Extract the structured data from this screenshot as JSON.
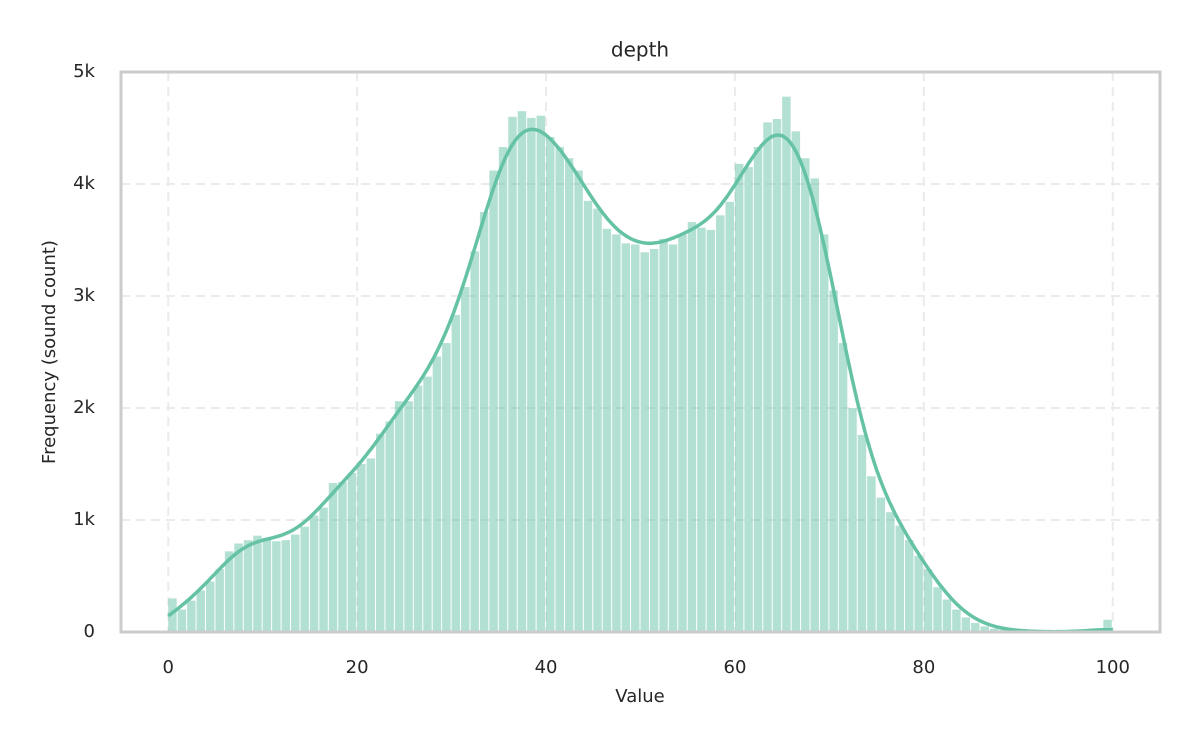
{
  "chart_data": {
    "type": "histogram",
    "title": "depth",
    "x_label": "Value",
    "y_label": "Frequency (sound count)",
    "bins": [
      0,
      1,
      2,
      3,
      4,
      5,
      6,
      7,
      8,
      9,
      10,
      11,
      12,
      13,
      14,
      15,
      16,
      17,
      18,
      19,
      20,
      21,
      22,
      23,
      24,
      25,
      26,
      27,
      28,
      29,
      30,
      31,
      32,
      33,
      34,
      35,
      36,
      37,
      38,
      39,
      40,
      41,
      42,
      43,
      44,
      45,
      46,
      47,
      48,
      49,
      50,
      51,
      52,
      53,
      54,
      55,
      56,
      57,
      58,
      59,
      60,
      61,
      62,
      63,
      64,
      65,
      66,
      67,
      68,
      69,
      70,
      71,
      72,
      73,
      74,
      75,
      76,
      77,
      78,
      79,
      80,
      81,
      82,
      83,
      84,
      85,
      86,
      87,
      88,
      89,
      90,
      91,
      92,
      93,
      94,
      95,
      96,
      97,
      98,
      99,
      100
    ],
    "counts": [
      300,
      200,
      280,
      370,
      450,
      560,
      720,
      790,
      820,
      860,
      840,
      810,
      820,
      870,
      940,
      1040,
      1110,
      1330,
      1340,
      1420,
      1500,
      1550,
      1770,
      1880,
      2060,
      2060,
      2200,
      2280,
      2460,
      2580,
      2830,
      3080,
      3400,
      3750,
      4120,
      4330,
      4600,
      4650,
      4590,
      4610,
      4420,
      4330,
      4230,
      4120,
      3850,
      3780,
      3600,
      3550,
      3470,
      3460,
      3390,
      3420,
      3510,
      3460,
      3550,
      3660,
      3610,
      3590,
      3720,
      3840,
      4180,
      4150,
      4330,
      4550,
      4580,
      4780,
      4470,
      4230,
      4050,
      3550,
      3050,
      2580,
      2000,
      1760,
      1390,
      1200,
      1070,
      950,
      820,
      680,
      560,
      400,
      290,
      200,
      130,
      80,
      50,
      30,
      20,
      10,
      5,
      3,
      2,
      2,
      1,
      1,
      1,
      1,
      1,
      110
    ],
    "color": "#66c2a5",
    "kde": true,
    "xlim": [
      -5,
      105
    ],
    "ylim": [
      0,
      5000
    ],
    "xticks": [
      0,
      20,
      40,
      60,
      80,
      100
    ],
    "yticks": [
      0,
      {
        "value": 1000,
        "label": "1k"
      },
      {
        "value": 2000,
        "label": "2k"
      },
      {
        "value": 3000,
        "label": "3k"
      },
      {
        "value": 4000,
        "label": "4k"
      },
      {
        "value": 5000,
        "label": "5k"
      }
    ],
    "grid": true
  }
}
